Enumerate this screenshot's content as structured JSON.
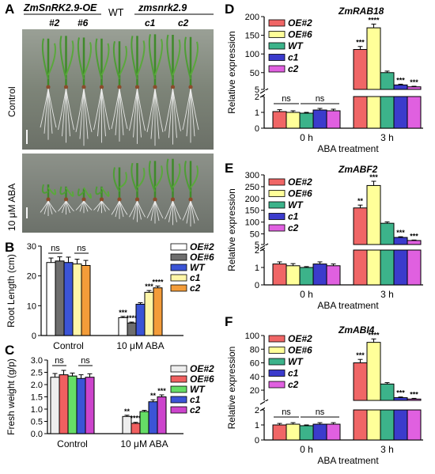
{
  "panel_letters": [
    "A",
    "B",
    "C",
    "D",
    "E",
    "F"
  ],
  "panel_a": {
    "oe_label": "ZmSnRK2.9-OE",
    "wt_label": "WT",
    "mut_label": "zmsnrk2.9",
    "lines": [
      "#2",
      "#6",
      "c1",
      "c2"
    ],
    "row_labels": [
      "Control",
      "10 μM ABA"
    ]
  },
  "colors": {
    "OE2": "#f06666",
    "OE6": "#ffff99",
    "WT": "#3cb38a",
    "c1": "#3b3bcc",
    "c2": "#e060e0",
    "B_OE2": "#ffffff",
    "B_OE6": "#6e6e6e",
    "B_WT": "#3b54d6",
    "B_c1": "#fff6a8",
    "B_c2": "#f39c39",
    "C_OE2": "#eeeeee",
    "C_OE6": "#f06060",
    "C_WT": "#66dd66",
    "C_c1": "#3b54d6",
    "C_c2": "#cc44cc"
  },
  "chart_data": [
    {
      "panel": "B",
      "type": "bar",
      "categories": [
        "Control",
        "10 μM ABA"
      ],
      "ylabel": "Root  Length (cm)",
      "ylim": [
        0,
        30
      ],
      "yticks": [
        0,
        10,
        20,
        30
      ],
      "legend_position": "right",
      "series": [
        {
          "name": "OE#2",
          "values": [
            24.5,
            6.0
          ],
          "errors": [
            1.5,
            0.4
          ],
          "sig": [
            "",
            "***"
          ]
        },
        {
          "name": "OE#6",
          "values": [
            25.0,
            4.2
          ],
          "errors": [
            1.4,
            0.3
          ],
          "sig": [
            "",
            "****"
          ]
        },
        {
          "name": "WT",
          "values": [
            24.5,
            10.5
          ],
          "errors": [
            1.8,
            0.5
          ],
          "sig": [
            "",
            ""
          ]
        },
        {
          "name": "c1",
          "values": [
            24.0,
            14.5
          ],
          "errors": [
            1.6,
            0.6
          ],
          "sig": [
            "",
            "***"
          ]
        },
        {
          "name": "c2",
          "values": [
            23.5,
            16.0
          ],
          "errors": [
            1.7,
            0.6
          ],
          "sig": [
            "",
            "****"
          ]
        }
      ],
      "ns_labels": [
        "ns",
        "ns"
      ]
    },
    {
      "panel": "C",
      "type": "bar",
      "categories": [
        "Control",
        "10 μM ABA"
      ],
      "ylabel": "Fresh weight  (g/p)",
      "ylim": [
        0,
        3.0
      ],
      "yticks": [
        0.0,
        0.5,
        1.0,
        1.5,
        2.0,
        2.5,
        3.0
      ],
      "legend_position": "right",
      "series": [
        {
          "name": "OE#2",
          "values": [
            2.3,
            0.7
          ],
          "errors": [
            0.15,
            0.05
          ],
          "sig": [
            "",
            "**"
          ]
        },
        {
          "name": "OE#6",
          "values": [
            2.4,
            0.42
          ],
          "errors": [
            0.18,
            0.04
          ],
          "sig": [
            "",
            "****"
          ]
        },
        {
          "name": "WT",
          "values": [
            2.35,
            0.9
          ],
          "errors": [
            0.12,
            0.05
          ],
          "sig": [
            "",
            ""
          ]
        },
        {
          "name": "c1",
          "values": [
            2.25,
            1.3
          ],
          "errors": [
            0.15,
            0.08
          ],
          "sig": [
            "",
            "**"
          ]
        },
        {
          "name": "c2",
          "values": [
            2.3,
            1.5
          ],
          "errors": [
            0.14,
            0.08
          ],
          "sig": [
            "",
            "***"
          ]
        }
      ],
      "ns_labels": [
        "ns",
        "ns"
      ]
    },
    {
      "panel": "D",
      "type": "bar",
      "title": "ZmRAB18",
      "categories": [
        "0 h",
        "3 h"
      ],
      "xlabel": "ABA  treatment",
      "ylabel": "Relative expression",
      "y_break": true,
      "lower_ylim": [
        0,
        2
      ],
      "lower_yticks": [
        0,
        1,
        2
      ],
      "upper_ylim": [
        5,
        200
      ],
      "upper_yticks": [
        5,
        50,
        100,
        150,
        200
      ],
      "legend_position": "top-left",
      "series": [
        {
          "name": "OE#2",
          "values": [
            1.05,
            112
          ],
          "errors": [
            0.12,
            8
          ],
          "sig": [
            "",
            "***"
          ]
        },
        {
          "name": "OE#6",
          "values": [
            1.0,
            170
          ],
          "errors": [
            0.1,
            10
          ],
          "sig": [
            "",
            "****"
          ]
        },
        {
          "name": "WT",
          "values": [
            0.95,
            50
          ],
          "errors": [
            0.05,
            4
          ],
          "sig": [
            "",
            ""
          ]
        },
        {
          "name": "c1",
          "values": [
            1.15,
            17
          ],
          "errors": [
            0.1,
            2
          ],
          "sig": [
            "",
            "***"
          ]
        },
        {
          "name": "c2",
          "values": [
            1.1,
            12
          ],
          "errors": [
            0.1,
            1.5
          ],
          "sig": [
            "",
            "***"
          ]
        }
      ],
      "ns_labels": [
        "ns",
        "ns"
      ]
    },
    {
      "panel": "E",
      "type": "bar",
      "title": "ZmABF2",
      "categories": [
        "0 h",
        "3 h"
      ],
      "xlabel": "ABA  treatment",
      "ylabel": "Relative expression",
      "y_break": true,
      "lower_ylim": [
        0,
        2
      ],
      "lower_yticks": [
        0,
        1,
        2
      ],
      "upper_ylim": [
        5,
        300
      ],
      "upper_yticks": [
        5,
        50,
        100,
        150,
        200,
        250,
        300
      ],
      "legend_position": "top-left",
      "series": [
        {
          "name": "OE#2",
          "values": [
            1.2,
            160
          ],
          "errors": [
            0.12,
            12
          ],
          "sig": [
            "",
            "**"
          ]
        },
        {
          "name": "OE#6",
          "values": [
            1.1,
            255
          ],
          "errors": [
            0.12,
            18
          ],
          "sig": [
            "",
            "***"
          ]
        },
        {
          "name": "WT",
          "values": [
            1.0,
            95
          ],
          "errors": [
            0.05,
            6
          ],
          "sig": [
            "",
            ""
          ]
        },
        {
          "name": "c1",
          "values": [
            1.2,
            35
          ],
          "errors": [
            0.12,
            3
          ],
          "sig": [
            "",
            "***"
          ]
        },
        {
          "name": "c2",
          "values": [
            1.1,
            22
          ],
          "errors": [
            0.1,
            2
          ],
          "sig": [
            "",
            "***"
          ]
        }
      ],
      "ns_labels": []
    },
    {
      "panel": "F",
      "type": "bar",
      "title": "ZmABI4",
      "categories": [
        "0 h",
        "3 h"
      ],
      "xlabel": "ABA  treatment",
      "ylabel": "Relative expression",
      "y_break": true,
      "lower_ylim": [
        0,
        2
      ],
      "lower_yticks": [
        0,
        1,
        2
      ],
      "upper_ylim": [
        5,
        100
      ],
      "upper_yticks": [
        20,
        40,
        60,
        80,
        100
      ],
      "legend_position": "top-left",
      "series": [
        {
          "name": "OE#2",
          "values": [
            1.0,
            60
          ],
          "errors": [
            0.1,
            5
          ],
          "sig": [
            "",
            "***"
          ]
        },
        {
          "name": "OE#6",
          "values": [
            1.05,
            90
          ],
          "errors": [
            0.1,
            5
          ],
          "sig": [
            "",
            "****"
          ]
        },
        {
          "name": "WT",
          "values": [
            0.95,
            29
          ],
          "errors": [
            0.05,
            2
          ],
          "sig": [
            "",
            ""
          ]
        },
        {
          "name": "c1",
          "values": [
            1.05,
            9
          ],
          "errors": [
            0.1,
            1
          ],
          "sig": [
            "",
            "***"
          ]
        },
        {
          "name": "c2",
          "values": [
            1.05,
            7
          ],
          "errors": [
            0.1,
            1
          ],
          "sig": [
            "",
            "***"
          ]
        }
      ],
      "ns_labels": [
        "ns",
        "ns"
      ]
    }
  ]
}
